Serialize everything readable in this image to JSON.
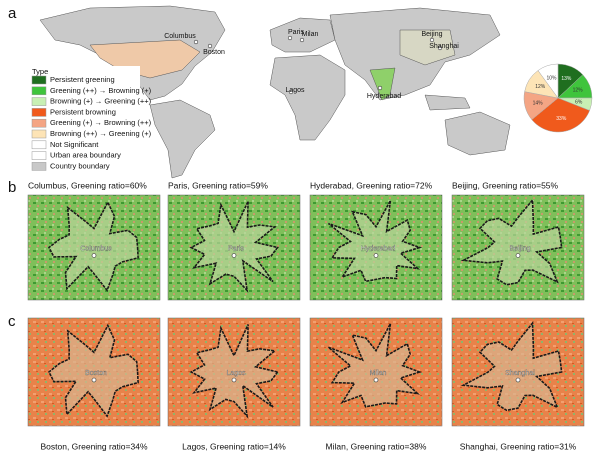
{
  "panel_labels": [
    "a",
    "b",
    "c"
  ],
  "legend": {
    "title": "Type",
    "items": [
      {
        "label": "Persistent greening",
        "color": "#1f6e1f"
      },
      {
        "label": "Greening (++) → Browning (+)",
        "color": "#3fc43c"
      },
      {
        "label": "Browning (+) → Greening (++)",
        "color": "#c8f0b4"
      },
      {
        "label": "Persistent browning",
        "color": "#f05a1c"
      },
      {
        "label": "Greening (+) → Browning (++)",
        "color": "#f4a584"
      },
      {
        "label": "Browning (++) → Greening (+)",
        "color": "#fde4b6"
      },
      {
        "label": "Not Significant",
        "color": "#ffffff"
      },
      {
        "label": "Urban area boundary",
        "color": "#ffffff"
      },
      {
        "label": "Country boundary",
        "color": "#c8c8c8"
      }
    ]
  },
  "world_cities": [
    "Columbus",
    "Boston",
    "Paris",
    "Milan",
    "Lagos",
    "Hyderabad",
    "Beijing",
    "Shanghai"
  ],
  "pie": {
    "type": "pie",
    "values": [
      13,
      12,
      6,
      33,
      14,
      12,
      10
    ],
    "value_labels": [
      "13%",
      "12%",
      "6%",
      "33%",
      "14%",
      "12%",
      "10%"
    ]
  },
  "panels": {
    "b": [
      {
        "caption": "Columbus, Greening ratio=60%",
        "city": "Columbus"
      },
      {
        "caption": "Paris, Greening ratio=59%",
        "city": "Paris"
      },
      {
        "caption": "Hyderabad, Greening ratio=72%",
        "city": "Hyderabad"
      },
      {
        "caption": "Beijing, Greening ratio=55%",
        "city": "Beijing"
      }
    ],
    "c": [
      {
        "caption": "Boston, Greening ratio=34%",
        "city": "Boston"
      },
      {
        "caption": "Lagos, Greening ratio=14%",
        "city": "Lagos"
      },
      {
        "caption": "Milan, Greening ratio=38%",
        "city": "Milan"
      },
      {
        "caption": "Shanghai, Greening ratio=31%",
        "city": "Shanghai"
      }
    ]
  }
}
